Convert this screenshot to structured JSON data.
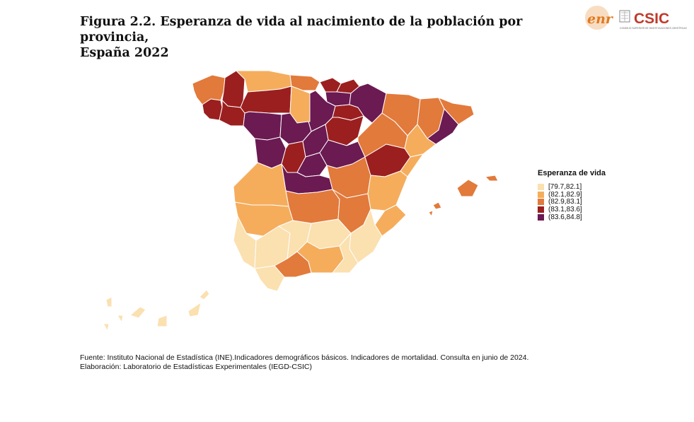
{
  "title": {
    "line1": "Figura 2.2. Esperanza de vida al nacimiento de la población por provincia,",
    "line2": "España 2022"
  },
  "logos": {
    "enr_text": "enr",
    "csic_text": "CSIC",
    "csic_subtitle": "CONSEJO SUPERIOR DE INVESTIGACIONES CIENTÍFICAS",
    "colors": {
      "enr": "#e07a1f",
      "csic": "#c0392b"
    }
  },
  "legend": {
    "title": "Esperanza de vida",
    "items": [
      {
        "label": "[79.7,82.1]",
        "color": "#fbe0b0"
      },
      {
        "label": "(82.1,82.9]",
        "color": "#f5ad5c"
      },
      {
        "label": "(82.9,83.1]",
        "color": "#e27a3b"
      },
      {
        "label": "(83.1,83.6]",
        "color": "#9b1f1f"
      },
      {
        "label": "(83.6,84.8]",
        "color": "#6b1a52"
      }
    ]
  },
  "source": {
    "line1": "Fuente: Instituto Nacional de Estadística (INE).Indicadores demográficos básicos. Indicadores de mortalidad. Consulta en junio de 2024.",
    "line2": "Elaboración: Laboratorio de Estadísticas Experimentales (IEGD-CSIC)"
  },
  "map": {
    "provinces": [
      {
        "name": "a-coruna",
        "class": 2
      },
      {
        "name": "lugo",
        "class": 3
      },
      {
        "name": "pontevedra",
        "class": 3
      },
      {
        "name": "ourense",
        "class": 3
      },
      {
        "name": "asturias",
        "class": 1
      },
      {
        "name": "cantabria",
        "class": 2
      },
      {
        "name": "vizcaya",
        "class": 3
      },
      {
        "name": "guipuzcoa",
        "class": 3
      },
      {
        "name": "alava",
        "class": 4
      },
      {
        "name": "navarra",
        "class": 4
      },
      {
        "name": "leon",
        "class": 3
      },
      {
        "name": "palencia",
        "class": 1
      },
      {
        "name": "burgos",
        "class": 4
      },
      {
        "name": "la-rioja",
        "class": 3
      },
      {
        "name": "zamora",
        "class": 4
      },
      {
        "name": "valladolid",
        "class": 4
      },
      {
        "name": "soria",
        "class": 3
      },
      {
        "name": "salamanca",
        "class": 4
      },
      {
        "name": "avila",
        "class": 3
      },
      {
        "name": "segovia",
        "class": 4
      },
      {
        "name": "madrid",
        "class": 4
      },
      {
        "name": "guadalajara",
        "class": 4
      },
      {
        "name": "toledo",
        "class": 4
      },
      {
        "name": "cuenca",
        "class": 2
      },
      {
        "name": "huesca",
        "class": 2
      },
      {
        "name": "zaragoza",
        "class": 2
      },
      {
        "name": "teruel",
        "class": 3
      },
      {
        "name": "lleida",
        "class": 2
      },
      {
        "name": "barcelona",
        "class": 4
      },
      {
        "name": "girona",
        "class": 2
      },
      {
        "name": "tarragona",
        "class": 1
      },
      {
        "name": "castellon",
        "class": 1
      },
      {
        "name": "valencia",
        "class": 1
      },
      {
        "name": "alicante",
        "class": 1
      },
      {
        "name": "caceres",
        "class": 1
      },
      {
        "name": "badajoz",
        "class": 1
      },
      {
        "name": "ciudad-real",
        "class": 2
      },
      {
        "name": "albacete",
        "class": 2
      },
      {
        "name": "murcia",
        "class": 0
      },
      {
        "name": "huelva",
        "class": 0
      },
      {
        "name": "sevilla",
        "class": 0
      },
      {
        "name": "cordoba",
        "class": 0
      },
      {
        "name": "jaen",
        "class": 0
      },
      {
        "name": "cadiz",
        "class": 0
      },
      {
        "name": "malaga",
        "class": 2
      },
      {
        "name": "granada",
        "class": 1
      },
      {
        "name": "almeria",
        "class": 0
      },
      {
        "name": "baleares",
        "class": 2
      },
      {
        "name": "las-palmas",
        "class": 0
      },
      {
        "name": "santa-cruz-tenerife",
        "class": 0
      }
    ]
  }
}
